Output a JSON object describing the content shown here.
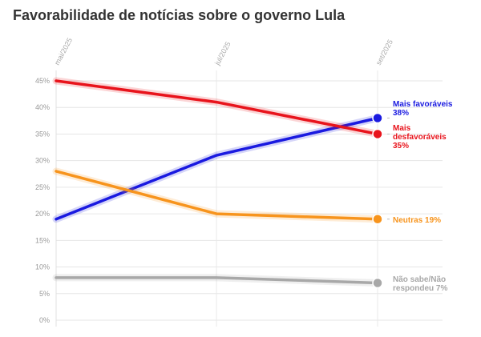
{
  "title": "Favorabilidade de notícias sobre o governo Lula",
  "chart_data": {
    "type": "line",
    "title": "Favorabilidade de notícias sobre o governo Lula",
    "x": [
      "mai/2025",
      "jul/2025",
      "set/2025"
    ],
    "ylim": [
      0,
      45
    ],
    "yticks": [
      "0%",
      "5%",
      "10%",
      "15%",
      "20%",
      "25%",
      "30%",
      "35%",
      "40%",
      "45%"
    ],
    "grid": true,
    "series": [
      {
        "name": "Mais favoráveis",
        "label_lines": [
          "Mais favoráveis",
          "38%"
        ],
        "values": [
          19,
          31,
          38
        ],
        "color": "#1a1ae0"
      },
      {
        "name": "Mais desfavoráveis",
        "label_lines": [
          "Mais",
          "desfavoráveis",
          "35%"
        ],
        "values": [
          45,
          41,
          35
        ],
        "color": "#e8141c"
      },
      {
        "name": "Neutras",
        "label_lines": [
          "Neutras 19%"
        ],
        "values": [
          28,
          20,
          19
        ],
        "color": "#f7941d"
      },
      {
        "name": "Não sabe/Não respondeu",
        "label_lines": [
          "Não sabe/Não",
          "respondeu 7%"
        ],
        "values": [
          8,
          8,
          7
        ],
        "color": "#a8a8a8"
      }
    ]
  }
}
